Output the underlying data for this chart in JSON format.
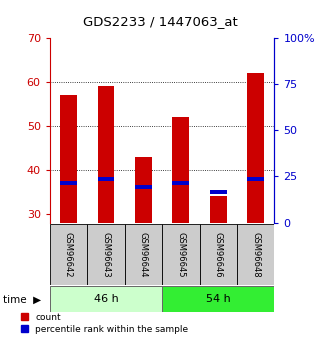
{
  "title": "GDS2233 / 1447063_at",
  "categories": [
    "GSM96642",
    "GSM96643",
    "GSM96644",
    "GSM96645",
    "GSM96646",
    "GSM96648"
  ],
  "count_values": [
    57,
    59,
    43,
    52,
    34,
    62
  ],
  "percentile_values": [
    37.0,
    38.0,
    36.0,
    37.0,
    35.0,
    38.0
  ],
  "ylim_left": [
    28,
    70
  ],
  "ylim_right": [
    0,
    100
  ],
  "yticks_left": [
    30,
    40,
    50,
    60,
    70
  ],
  "yticks_right": [
    0,
    25,
    50,
    75,
    100
  ],
  "ytick_labels_right": [
    "0",
    "25",
    "50",
    "75",
    "100%"
  ],
  "group1_label": "46 h",
  "group2_label": "54 h",
  "group1_color": "#ccffcc",
  "group2_color": "#33ee33",
  "red_color": "#cc0000",
  "blue_color": "#0000cc",
  "label_count": "count",
  "label_percentile": "percentile rank within the sample",
  "bar_bg_color": "#cccccc",
  "bar_bottom": 28
}
